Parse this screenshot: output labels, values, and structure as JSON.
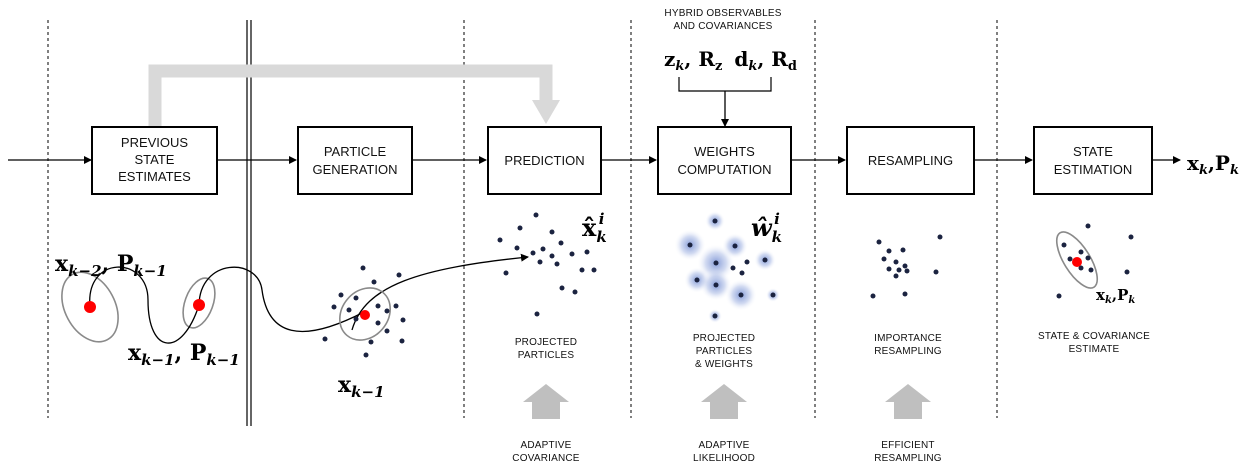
{
  "hybrid_header": {
    "line1": "HYBRID OBSERVABLES",
    "line2": "AND COVARIANCES"
  },
  "observables": {
    "z": "z",
    "z_sub": "k",
    "R": "R",
    "R_sub_z": "z",
    "d": "d",
    "d_sub": "k",
    "R_sub_d": "d"
  },
  "blocks": [
    {
      "id": "previous",
      "lines": [
        "PREVIOUS",
        "STATE",
        "ESTIMATES"
      ]
    },
    {
      "id": "particle",
      "lines": [
        "PARTICLE",
        "GENERATION"
      ]
    },
    {
      "id": "prediction",
      "lines": [
        "PREDICTION"
      ]
    },
    {
      "id": "weights",
      "lines": [
        "WEIGHTS",
        "COMPUTATION"
      ]
    },
    {
      "id": "resampling",
      "lines": [
        "RESAMPLING"
      ]
    },
    {
      "id": "state",
      "lines": [
        "STATE",
        "ESTIMATION"
      ]
    }
  ],
  "output_label": {
    "x": "x",
    "x_sub": "k",
    "sep": ",",
    "P": "P",
    "P_sub": "k"
  },
  "math_labels": {
    "prev2": {
      "x": "x",
      "x_sub": "k−2",
      "sep": ", ",
      "P": "P",
      "P_sub": "k−1"
    },
    "prev1": {
      "x": "x",
      "x_sub": "k−1",
      "sep": ", ",
      "P": "P",
      "P_sub": "k−1"
    },
    "particle_x": {
      "x": "x",
      "x_sub": "k−1"
    },
    "pred_x": {
      "x": "x̂",
      "sub": "k",
      "sup": "i"
    },
    "weight_w": {
      "w": "ŵ",
      "sub": "k",
      "sup": "i"
    },
    "est_x": {
      "x": "x",
      "x_sub": "k",
      "sep": ",",
      "P": "P",
      "P_sub": "k"
    }
  },
  "captions": {
    "projected": [
      "PROJECTED",
      "PARTICLES"
    ],
    "projected_weights": [
      "PROJECTED",
      "PARTICLES",
      "& WEIGHTS"
    ],
    "importance": [
      "IMPORTANCE",
      "RESAMPLING"
    ],
    "state_cov": [
      "STATE & COVARIANCE",
      "ESTIMATE"
    ]
  },
  "bottom_labels": {
    "adaptive_cov": [
      "ADAPTIVE",
      "COVARIANCE"
    ],
    "adaptive_lik": [
      "ADAPTIVE",
      "LIKELIHOOD"
    ],
    "efficient": [
      "EFFICIENT",
      "RESAMPLING"
    ]
  },
  "colors": {
    "feedback_arrow": "#d9d9d9",
    "up_arrow": "#bfbfbf",
    "state_point": "#ff0000",
    "particle": "#1b2340",
    "weight_glow": "#5b79c9",
    "ellipse": "#8a8a8a"
  }
}
